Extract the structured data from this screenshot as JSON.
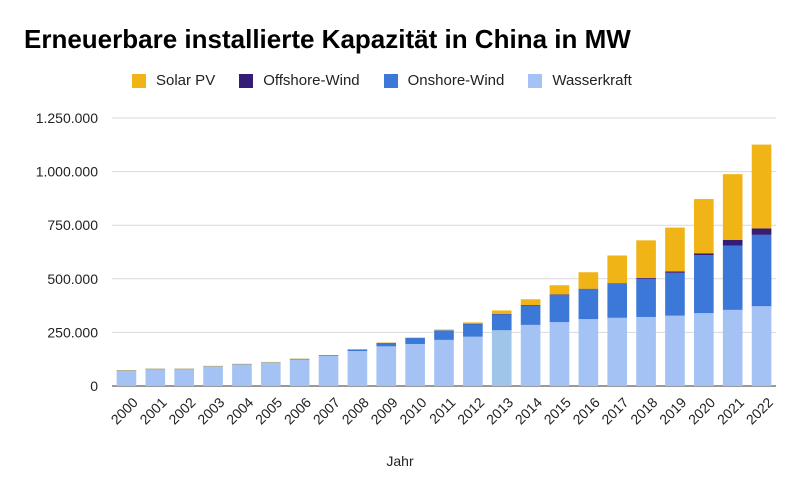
{
  "chart_data": {
    "type": "bar",
    "stacked": true,
    "title": "Erneuerbare installierte Kapazität in China in MW",
    "xlabel": "Jahr",
    "ylabel": "",
    "ylim": [
      0,
      1250000
    ],
    "y_ticks": [
      0,
      250000,
      500000,
      750000,
      1000000,
      1250000
    ],
    "y_tick_labels": [
      "0",
      "250.000",
      "500.000",
      "750.000",
      "1.000.000",
      "1.250.000"
    ],
    "grid": true,
    "legend_position": "top",
    "categories": [
      "2000",
      "2001",
      "2002",
      "2003",
      "2004",
      "2005",
      "2006",
      "2007",
      "2008",
      "2009",
      "2010",
      "2011",
      "2012",
      "2013",
      "2014",
      "2015",
      "2016",
      "2017",
      "2018",
      "2019",
      "2020",
      "2021",
      "2022"
    ],
    "series": [
      {
        "name": "Wasserkraft",
        "color": "#a4c2f4",
        "values": [
          73000,
          80000,
          80000,
          93000,
          100000,
          110000,
          123000,
          140000,
          163000,
          185000,
          196000,
          215000,
          230000,
          260000,
          285000,
          298000,
          312000,
          318000,
          322000,
          328000,
          340000,
          355000,
          372000
        ]
      },
      {
        "name": "Onshore-Wind",
        "color": "#3c78d8",
        "values": [
          300,
          400,
          500,
          600,
          3000,
          2000,
          4000,
          4000,
          8000,
          17000,
          29000,
          45000,
          60000,
          75000,
          92000,
          128000,
          140000,
          158000,
          178000,
          200000,
          270000,
          300000,
          333000
        ]
      },
      {
        "name": "Offshore-Wind",
        "color": "#351c75",
        "values": [
          0,
          0,
          0,
          0,
          0,
          0,
          0,
          0,
          0,
          0,
          0,
          0,
          300,
          400,
          600,
          1000,
          1600,
          2800,
          4400,
          6000,
          9000,
          26000,
          30000
        ]
      },
      {
        "name": "Solar PV",
        "color": "#f1b416",
        "values": [
          20,
          30,
          40,
          50,
          60,
          70,
          80,
          100,
          150,
          400,
          800,
          3500,
          6500,
          17000,
          27000,
          43000,
          77000,
          130000,
          175000,
          205000,
          253000,
          307000,
          391000
        ]
      }
    ],
    "highlight_category": {
      "category": "2013",
      "color": "#9fc5e8"
    }
  }
}
